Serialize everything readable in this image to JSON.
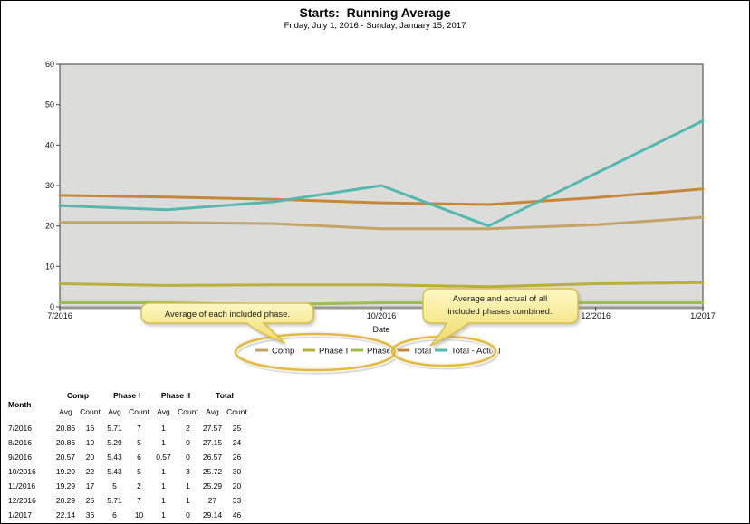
{
  "header": {
    "title": "Starts:  Running Average",
    "subtitle": "Friday, July 1, 2016 - Sunday, January 15, 2017"
  },
  "chart_data": {
    "type": "line",
    "title": "Starts: Running Average",
    "xlabel": "Date",
    "ylabel": "",
    "ylim": [
      0,
      60
    ],
    "y_ticks": [
      0,
      10,
      20,
      30,
      40,
      50,
      60
    ],
    "categories": [
      "7/2016",
      "8/2016",
      "9/2016",
      "10/2016",
      "11/2016",
      "12/2016",
      "1/2017"
    ],
    "series": [
      {
        "name": "Comp",
        "color": "#c2a469",
        "values": [
          20.86,
          20.86,
          20.57,
          19.29,
          19.29,
          20.29,
          22.14
        ]
      },
      {
        "name": "Phase I",
        "color": "#b8af3c",
        "values": [
          5.71,
          5.29,
          5.43,
          5.43,
          5,
          5.71,
          6
        ]
      },
      {
        "name": "Phase II",
        "color": "#9cbe4a",
        "values": [
          1,
          1,
          0.57,
          1,
          1,
          1,
          1
        ]
      },
      {
        "name": "Total",
        "color": "#c5883b",
        "values": [
          27.57,
          27.15,
          26.57,
          25.72,
          25.29,
          27,
          29.14
        ]
      },
      {
        "name": "Total - Actual",
        "color": "#53b8ae",
        "values": [
          25,
          24,
          26,
          30,
          20,
          33,
          46
        ]
      }
    ],
    "legend_position": "bottom",
    "grid": false,
    "plot_bg": "#dcdcda"
  },
  "annotations": {
    "callout_phases": "Average of each included phase.",
    "callout_total_line1": "Average and actual of all",
    "callout_total_line2": "included phases combined.",
    "callout_fill_top": "#fdf8c4",
    "callout_fill_bottom": "#f0db67",
    "callout_border": "#d8c049",
    "ellipse_color": "#e3ba41"
  },
  "table": {
    "col_month": "Month",
    "groups": [
      "Comp",
      "Phase I",
      "Phase II",
      "Total"
    ],
    "sub_headers": [
      "Avg",
      "Count"
    ],
    "rows": [
      [
        "7/2016",
        "20.86",
        "16",
        "5.71",
        "7",
        "1",
        "2",
        "27.57",
        "25"
      ],
      [
        "8/2016",
        "20.86",
        "19",
        "5.29",
        "5",
        "1",
        "0",
        "27.15",
        "24"
      ],
      [
        "9/2016",
        "20.57",
        "20",
        "5.43",
        "6",
        "0.57",
        "0",
        "26.57",
        "26"
      ],
      [
        "10/2016",
        "19.29",
        "22",
        "5.43",
        "5",
        "1",
        "3",
        "25.72",
        "30"
      ],
      [
        "11/2016",
        "19.29",
        "17",
        "5",
        "2",
        "1",
        "1",
        "25.29",
        "20"
      ],
      [
        "12/2016",
        "20.29",
        "25",
        "5.71",
        "7",
        "1",
        "1",
        "27",
        "33"
      ],
      [
        "1/2017",
        "22.14",
        "36",
        "6",
        "10",
        "1",
        "0",
        "29.14",
        "46"
      ]
    ]
  }
}
